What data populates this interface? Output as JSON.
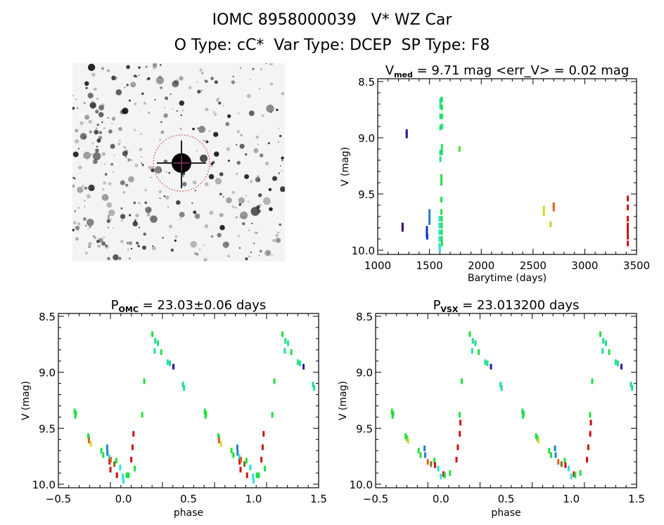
{
  "header": {
    "title": "IOMC 8958000039   V* WZ Car",
    "subtitle": "O Type: cC*  Var Type: DCEP  SP Type: F8"
  },
  "image": {
    "description_icon": "sky-field-image",
    "marker_color": "#d01010"
  },
  "chart_data": [
    {
      "id": "lightcurve",
      "type": "scatter",
      "title_main": "V",
      "title_sub": "med",
      "title_rest": " = 9.71 mag <err_V> = 0.02 mag",
      "xlabel": "Barytime (days)",
      "ylabel": "V (mag)",
      "xlim": [
        1000,
        3500
      ],
      "ylim": [
        8.5,
        10.0
      ],
      "y_inverted": true,
      "xticks": [
        "1000",
        "1500",
        "2000",
        "2500",
        "3000",
        "3500"
      ],
      "yticks": [
        "8.5",
        "9.0",
        "9.5",
        "10.0"
      ],
      "points": [
        [
          1240,
          9.78,
          "#3a0070"
        ],
        [
          1240,
          9.81,
          "#3a0070"
        ],
        [
          1280,
          8.95,
          "#3010a0"
        ],
        [
          1280,
          8.98,
          "#3010a0"
        ],
        [
          1475,
          9.81,
          "#1030c0"
        ],
        [
          1475,
          9.86,
          "#1030c0"
        ],
        [
          1478,
          9.88,
          "#1030c0"
        ],
        [
          1500,
          9.66,
          "#2080d0"
        ],
        [
          1500,
          9.71,
          "#2080d0"
        ],
        [
          1500,
          9.75,
          "#2080d0"
        ],
        [
          1597,
          9.72,
          "#30e0e0"
        ],
        [
          1597,
          9.78,
          "#30e0e0"
        ],
        [
          1597,
          9.84,
          "#30e0e0"
        ],
        [
          1597,
          9.9,
          "#30e0e0"
        ],
        [
          1597,
          9.96,
          "#30e0e0"
        ],
        [
          1600,
          9.99,
          "#30e0e0"
        ],
        [
          1605,
          8.67,
          "#20e090"
        ],
        [
          1605,
          8.72,
          "#20e090"
        ],
        [
          1605,
          8.81,
          "#20e090"
        ],
        [
          1605,
          8.91,
          "#20e090"
        ],
        [
          1605,
          9.13,
          "#20e090"
        ],
        [
          1605,
          9.19,
          "#20e090"
        ],
        [
          1620,
          8.66,
          "#20e060"
        ],
        [
          1620,
          8.73,
          "#20e060"
        ],
        [
          1620,
          8.81,
          "#20e060"
        ],
        [
          1620,
          8.9,
          "#20e060"
        ],
        [
          1620,
          9.08,
          "#20e060"
        ],
        [
          1620,
          9.13,
          "#20e060"
        ],
        [
          1615,
          9.35,
          "#20e040"
        ],
        [
          1615,
          9.4,
          "#20e040"
        ],
        [
          1615,
          9.55,
          "#20e040"
        ],
        [
          1615,
          9.66,
          "#20e040"
        ],
        [
          1618,
          9.72,
          "#20e040"
        ],
        [
          1618,
          9.78,
          "#20e040"
        ],
        [
          1618,
          9.84,
          "#20e040"
        ],
        [
          1618,
          9.9,
          "#20e040"
        ],
        [
          1620,
          9.94,
          "#20e040"
        ],
        [
          1790,
          9.1,
          "#50e030"
        ],
        [
          2605,
          9.63,
          "#d0e020"
        ],
        [
          2605,
          9.67,
          "#d0e020"
        ],
        [
          2670,
          9.77,
          "#c8d020"
        ],
        [
          2700,
          9.6,
          "#e06020"
        ],
        [
          2700,
          9.63,
          "#e06020"
        ],
        [
          3415,
          9.54,
          "#d01010"
        ],
        [
          3415,
          9.62,
          "#d01010"
        ],
        [
          3415,
          9.72,
          "#d01010"
        ],
        [
          3415,
          9.78,
          "#d01010"
        ],
        [
          3415,
          9.83,
          "#d01010"
        ],
        [
          3415,
          9.88,
          "#d01010"
        ],
        [
          3415,
          9.94,
          "#d01010"
        ]
      ]
    },
    {
      "id": "phase-omc",
      "type": "scatter",
      "title_main": "P",
      "title_sub": "OMC",
      "title_rest": " = 23.03±0.06 days",
      "xlabel": "phase",
      "ylabel": "V (mag)",
      "xlim": [
        -0.5,
        1.5
      ],
      "ylim": [
        8.5,
        10.0
      ],
      "y_inverted": true,
      "phase_repeat": true,
      "xticks": [
        "-0.5",
        "0.0",
        "0.5",
        "1.0",
        "1.5"
      ],
      "yticks": [
        "8.5",
        "9.0",
        "9.5",
        "10.0"
      ],
      "points": [
        [
          -0.375,
          9.35,
          "#20e040"
        ],
        [
          -0.37,
          9.39,
          "#20e040"
        ],
        [
          -0.365,
          9.37,
          "#20e040"
        ],
        [
          -0.27,
          9.57,
          "#20e040"
        ],
        [
          -0.265,
          9.59,
          "#20e040"
        ],
        [
          -0.265,
          9.61,
          "#e06020"
        ],
        [
          -0.25,
          9.64,
          "#d0e020"
        ],
        [
          -0.17,
          9.7,
          "#20e040"
        ],
        [
          -0.155,
          9.74,
          "#20e040"
        ],
        [
          -0.125,
          9.67,
          "#2080d0"
        ],
        [
          -0.123,
          9.72,
          "#2080d0"
        ],
        [
          -0.11,
          9.76,
          "#30e0e0"
        ],
        [
          -0.107,
          9.8,
          "#d01010"
        ],
        [
          -0.1,
          9.87,
          "#d01010"
        ],
        [
          -0.097,
          9.78,
          "#e06020"
        ],
        [
          -0.07,
          9.82,
          "#807020"
        ],
        [
          -0.055,
          9.79,
          "#20e040"
        ],
        [
          -0.05,
          9.92,
          "#d01010"
        ],
        [
          -0.025,
          9.85,
          "#30e0e0"
        ],
        [
          -0.005,
          9.93,
          "#30e0e0"
        ],
        [
          0.0,
          9.97,
          "#30e0e0"
        ],
        [
          0.025,
          9.92,
          "#20e040"
        ],
        [
          0.04,
          9.92,
          "#20e040"
        ],
        [
          0.06,
          9.78,
          "#d01010"
        ],
        [
          0.07,
          9.67,
          "#d01010"
        ],
        [
          0.077,
          9.55,
          "#d01010"
        ],
        [
          0.087,
          9.86,
          "#20e040"
        ],
        [
          0.144,
          9.38,
          "#20e040"
        ],
        [
          0.16,
          9.08,
          "#20e040"
        ],
        [
          0.222,
          8.66,
          "#20e040"
        ],
        [
          0.245,
          8.72,
          "#20e090"
        ],
        [
          0.265,
          8.74,
          "#20e090"
        ],
        [
          0.24,
          8.81,
          "#20e090"
        ],
        [
          0.29,
          8.82,
          "#20e040"
        ],
        [
          0.34,
          8.91,
          "#20e090"
        ],
        [
          0.357,
          8.92,
          "#20e090"
        ],
        [
          0.384,
          8.95,
          "#3010a0"
        ],
        [
          0.457,
          9.11,
          "#20e090"
        ],
        [
          0.466,
          9.14,
          "#20e090"
        ]
      ]
    },
    {
      "id": "phase-vsx",
      "type": "scatter",
      "title_main": "P",
      "title_sub": "VSX",
      "title_rest": " = 23.013200 days",
      "xlabel": "phase",
      "ylabel": "V (mag)",
      "xlim": [
        -0.5,
        1.5
      ],
      "ylim": [
        8.5,
        10.0
      ],
      "y_inverted": true,
      "phase_repeat": true,
      "xticks": [
        "-0.5",
        "0.0",
        "0.5",
        "1.0",
        "1.5"
      ],
      "yticks": [
        "8.5",
        "9.0",
        "9.5",
        "10.0"
      ],
      "points": [
        [
          -0.375,
          9.35,
          "#20e040"
        ],
        [
          -0.37,
          9.39,
          "#20e040"
        ],
        [
          -0.365,
          9.37,
          "#20e040"
        ],
        [
          -0.27,
          9.57,
          "#20e040"
        ],
        [
          -0.26,
          9.59,
          "#20e040"
        ],
        [
          -0.25,
          9.61,
          "#d0e020"
        ],
        [
          -0.17,
          9.7,
          "#20e040"
        ],
        [
          -0.155,
          9.74,
          "#20e040"
        ],
        [
          -0.125,
          9.68,
          "#2080d0"
        ],
        [
          -0.12,
          9.74,
          "#2080d0"
        ],
        [
          -0.1,
          9.8,
          "#e06020"
        ],
        [
          -0.075,
          9.82,
          "#807020"
        ],
        [
          -0.05,
          9.79,
          "#20e040"
        ],
        [
          -0.045,
          9.83,
          "#d01010"
        ],
        [
          -0.02,
          9.86,
          "#30e0e0"
        ],
        [
          0.0,
          9.93,
          "#30e0e0"
        ],
        [
          0.02,
          9.91,
          "#d01010"
        ],
        [
          0.03,
          9.92,
          "#20e040"
        ],
        [
          0.07,
          9.9,
          "#20e040"
        ],
        [
          0.12,
          9.78,
          "#d01010"
        ],
        [
          0.13,
          9.67,
          "#d01010"
        ],
        [
          0.145,
          9.55,
          "#d01010"
        ],
        [
          0.15,
          9.45,
          "#d01010"
        ],
        [
          0.144,
          9.38,
          "#20e040"
        ],
        [
          0.16,
          9.08,
          "#20e040"
        ],
        [
          0.222,
          8.66,
          "#20e040"
        ],
        [
          0.245,
          8.72,
          "#20e090"
        ],
        [
          0.265,
          8.74,
          "#20e090"
        ],
        [
          0.24,
          8.81,
          "#20e090"
        ],
        [
          0.29,
          8.82,
          "#20e040"
        ],
        [
          0.34,
          8.91,
          "#20e090"
        ],
        [
          0.357,
          8.92,
          "#20e090"
        ],
        [
          0.384,
          8.95,
          "#3010a0"
        ],
        [
          0.457,
          9.11,
          "#20e090"
        ],
        [
          0.466,
          9.14,
          "#20e090"
        ]
      ]
    }
  ]
}
